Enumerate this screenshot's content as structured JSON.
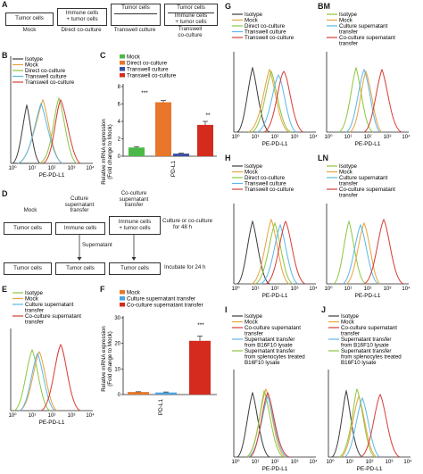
{
  "colors": {
    "isotype": "#3b3b3b",
    "mock": "#e8a23a",
    "direct": "#8cc63f",
    "transwell": "#5bb7e8",
    "cotransfer": "#d63c36",
    "mock_bar": "#4cb848",
    "direct_bar": "#e8762b",
    "transwell_bar": "#3a4fa0",
    "coculture_bar": "#d52b1e",
    "mockF_bar": "#e8762b",
    "cultureF_bar": "#4aa3df",
    "cocultureF_bar": "#d52b1e"
  },
  "panel_labels": {
    "A": "A",
    "B": "B",
    "C": "C",
    "D": "D",
    "E": "E",
    "F": "F",
    "G": "G",
    "H": "H",
    "I": "I",
    "J": "J",
    "BM": "BM",
    "LN": "LN"
  },
  "axis": {
    "flow_x": "PE-PD-L1",
    "pdl1": "PD-L1",
    "ticks": [
      "10⁰",
      "10¹",
      "10²",
      "10³",
      "10⁴"
    ]
  },
  "panelA": {
    "tumor": "Tumor cells",
    "immune_tumor_1": "Immune cells",
    "immune_tumor_2": "+ tumor cells",
    "tw_tumor": "Tumor cells",
    "tw_immune_1": "Immune cells",
    "tw_immune_2": "+ tumor cells",
    "cap_mock": "Mock",
    "cap_direct": "Direct co-culture",
    "cap_tw": "Transwell culture",
    "cap_twco_1": "Transwell",
    "cap_twco_2": "co-culture"
  },
  "legendB": [
    "Isotype",
    "Mock",
    "Direct co-culture",
    "Transwell culture",
    "Transwell co-culture"
  ],
  "chartC": {
    "legend": [
      "Mock",
      "Direct co-culture",
      "Transwell culture",
      "Transwell co-culture"
    ],
    "ylabel_1": "Relative mRNA expression",
    "ylabel_2": "(Fold change to Mock)",
    "yticks": [
      "0",
      "2",
      "4",
      "6",
      "8"
    ],
    "sig1": "***",
    "sig2": "**"
  },
  "chart_data": [
    {
      "type": "bar",
      "categories": [
        "PD-L1"
      ],
      "series": [
        {
          "name": "Mock",
          "values": [
            1.0
          ]
        },
        {
          "name": "Direct co-culture",
          "values": [
            6.2
          ]
        },
        {
          "name": "Transwell culture",
          "values": [
            0.3
          ]
        },
        {
          "name": "Transwell co-culture",
          "values": [
            3.6
          ]
        }
      ],
      "ylim": [
        0,
        8
      ],
      "errors": [
        0.1,
        0.2,
        0.05,
        0.4
      ]
    },
    {
      "type": "bar",
      "categories": [
        "PD-L1"
      ],
      "series": [
        {
          "name": "Mock",
          "values": [
            1.0
          ]
        },
        {
          "name": "Culture supernatant transfer",
          "values": [
            0.8
          ]
        },
        {
          "name": "Co-culture supernatant transfer",
          "values": [
            21
          ]
        }
      ],
      "ylim": [
        0,
        30
      ],
      "errors": [
        0.1,
        0.2,
        1.8
      ]
    }
  ],
  "panelD": {
    "mock": "Mock",
    "cst_1": "Culture",
    "cst_2": "supernatant",
    "cst_3": "transfer",
    "ccst_1": "Co-culture",
    "ccst_2": "supernatant",
    "ccst_3": "transfer",
    "tumor_cells": "Tumor cells",
    "immune_cells": "Immune cells",
    "immune_tumor_1": "Immune cells",
    "immune_tumor_2": "+ tumor cells",
    "culture_48_1": "Culture or co-culture",
    "culture_48_2": "for 48 h",
    "supernatant": "Supernatant",
    "incubate": "Incubate for 24 h"
  },
  "legendE": [
    "Isotype",
    "Mock",
    "Culture supernatant",
    "transfer",
    "Co-culture supernatant",
    "transfer"
  ],
  "chartF": {
    "legend": [
      "Mock",
      "Culture supernatant transfer",
      "Co-culture supernatant transfer"
    ],
    "ylabel_1": "Relative mRNA expression",
    "ylabel_2": "(Fold change to Mock)",
    "yticks": [
      "0",
      "10",
      "20",
      "30"
    ],
    "sig": "***"
  },
  "legendG": [
    "Isotype",
    "Mock",
    "Direct co-culture",
    "Transwell culture",
    "Transwell co-culture"
  ],
  "legendBM": [
    "Isotype",
    "Mock",
    "Culture supernatant",
    "transfer",
    "Co-culture supernatant",
    "transfer"
  ],
  "legendH": [
    "Isotype",
    "Mock",
    "Direct co-culture",
    "Transwell culture",
    "Transwell co-culture"
  ],
  "legendLN": [
    "Isotype",
    "Mock",
    "Culture supernatant",
    "transfer",
    "Co-culture supernatant",
    "transfer"
  ],
  "legendI": [
    "Isotype",
    "Mock",
    "Co-culture supernatant",
    "transfer",
    "Supernatant transfer",
    "from B16F10 lysate",
    "Supernatant transfer",
    "from splenocytes treated",
    "B16F10 lysate"
  ],
  "legendJ": [
    "Isotype",
    "Mock",
    "Co-culture supernatant",
    "transfer",
    "Supernatant transfer",
    "from B16F10 lysate",
    "Supernatant transfer",
    "from splenocytes treated",
    "B16F10 lysate"
  ]
}
